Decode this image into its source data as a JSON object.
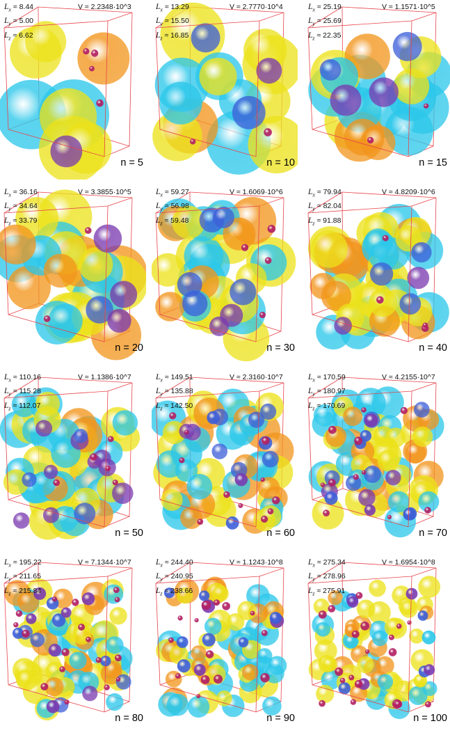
{
  "colors": {
    "box_edge": "#e8434a",
    "orange": "#f2951c",
    "yellow": "#ece21a",
    "cyan": "#2bc7ea",
    "blue": "#3d5fd8",
    "purple": "#7a3ab0",
    "magenta": "#b21e63"
  },
  "panels": [
    {
      "n_label": "n = 5",
      "lx": "8.44",
      "ly": "5.00",
      "lz": "6.62",
      "volume": "V ≈ 2.2348·10^3"
    },
    {
      "n_label": "n = 10",
      "lx": "13.29",
      "ly": "15.50",
      "lz": "16.85",
      "volume": "V ≈ 2.7770·10^4"
    },
    {
      "n_label": "n = 15",
      "lx": "25.19",
      "ly": "25.69",
      "lz": "22.35",
      "volume": "V ≈ 1.1571·10^5"
    },
    {
      "n_label": "n = 20",
      "lx": "36.16",
      "ly": "34.64",
      "lz": "33.79",
      "volume": "V ≈ 3.3855·10^5"
    },
    {
      "n_label": "n = 30",
      "lx": "59.27",
      "ly": "56.98",
      "lz": "59.48",
      "volume": "V ≈ 1.6069·10^6"
    },
    {
      "n_label": "n = 40",
      "lx": "79.94",
      "ly": "82.04",
      "lz": "91.88",
      "volume": "V ≈ 4.8209·10^6"
    },
    {
      "n_label": "n = 50",
      "lx": "110.16",
      "ly": "115.28",
      "lz": "112.07",
      "volume": "V ≈ 1.1386·10^7"
    },
    {
      "n_label": "n = 60",
      "lx": "149.51",
      "ly": "135.88",
      "lz": "142.50",
      "volume": "V ≈ 2.3160·10^7"
    },
    {
      "n_label": "n = 70",
      "lx": "170.59",
      "ly": "180.97",
      "lz": "170.69",
      "volume": "V ≈ 4.2155·10^7"
    },
    {
      "n_label": "n = 80",
      "lx": "195.22",
      "ly": "211.65",
      "lz": "215.84",
      "volume": "V ≈ 7.1344·10^7"
    },
    {
      "n_label": "n = 90",
      "lx": "244.40",
      "ly": "240.95",
      "lz": "238.66",
      "volume": "V ≈ 1.1243·10^8"
    },
    {
      "n_label": "n = 100",
      "lx": "275.34",
      "ly": "278.96",
      "lz": "275.91",
      "volume": "V ≈ 1.6954·10^8"
    }
  ]
}
